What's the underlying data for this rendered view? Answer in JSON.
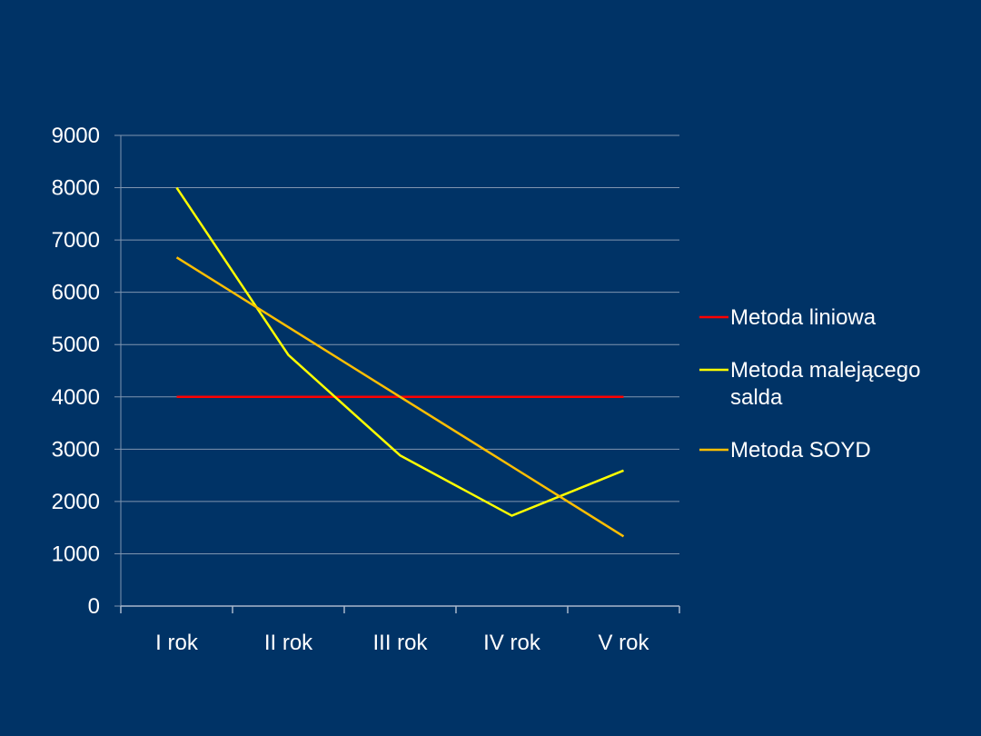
{
  "chart_data": {
    "type": "line",
    "categories": [
      "I rok",
      "II rok",
      "III rok",
      "IV rok",
      "V rok"
    ],
    "ylim": [
      0,
      9000
    ],
    "yticks": [
      0,
      1000,
      2000,
      3000,
      4000,
      5000,
      6000,
      7000,
      8000,
      9000
    ],
    "grid": true,
    "legend_position": "right",
    "series": [
      {
        "name": "Metoda liniowa",
        "color": "#ff0000",
        "values": [
          4000,
          4000,
          4000,
          4000,
          4000
        ]
      },
      {
        "name": "Metoda malejącego salda",
        "color": "#ffff00",
        "values": [
          8000,
          4800,
          2880,
          1728,
          2592
        ]
      },
      {
        "name": "Metoda SOYD",
        "color": "#ffbf00",
        "values": [
          6667,
          5333,
          4000,
          2667,
          1333
        ]
      }
    ]
  }
}
